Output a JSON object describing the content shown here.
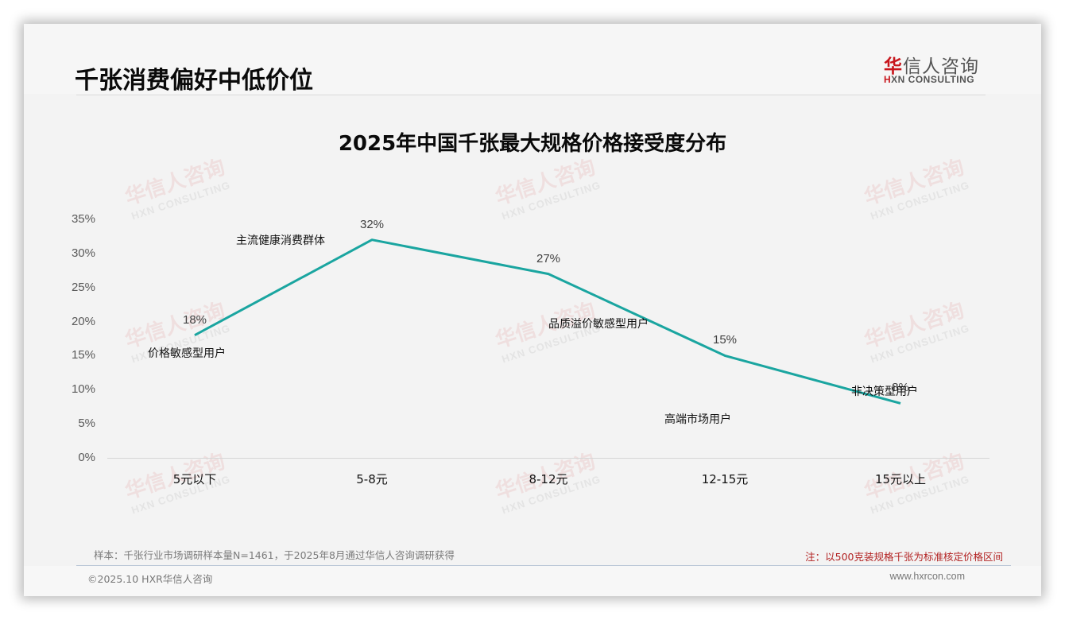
{
  "header": {
    "title": "千张消费偏好中低价位",
    "logo": {
      "cn_accent": "华",
      "cn_rest": "信人咨询",
      "en_accent": "H",
      "en_rest": "XN CONSULTING"
    }
  },
  "watermark": {
    "cn": "华信人咨询",
    "en": "HXN CONSULTING"
  },
  "chart_data": {
    "type": "line",
    "title": "2025年中国千张最大规格价格接受度分布",
    "xlabel": "",
    "ylabel": "",
    "categories": [
      "5元以下",
      "5-8元",
      "8-12元",
      "12-15元",
      "15元以上"
    ],
    "values": [
      18,
      32,
      27,
      15,
      8
    ],
    "value_labels": [
      "18%",
      "32%",
      "27%",
      "15%",
      "8%"
    ],
    "y_ticks": [
      "0%",
      "5%",
      "10%",
      "15%",
      "20%",
      "25%",
      "30%",
      "35%"
    ],
    "ylim": [
      0,
      35
    ],
    "grid": false,
    "legend": null,
    "line_color": "#1aa5a0",
    "annotations": [
      {
        "text": "价格敏感型用户",
        "category": "5元以下"
      },
      {
        "text": "主流健康消费群体",
        "category": "5-8元"
      },
      {
        "text": "品质溢价敏感型用户",
        "category": "8-12元"
      },
      {
        "text": "高端市场用户",
        "category": "12-15元"
      },
      {
        "text": "非决策型用户",
        "category": "15元以上"
      }
    ]
  },
  "footer": {
    "sample": "样本：千张行业市场调研样本量N=1461，于2025年8月通过华信人咨询调研获得",
    "note": "注：以500克装规格千张为标准核定价格区间",
    "copyright": "©2025.10 HXR华信人咨询",
    "website": "www.hxrcon.com"
  }
}
